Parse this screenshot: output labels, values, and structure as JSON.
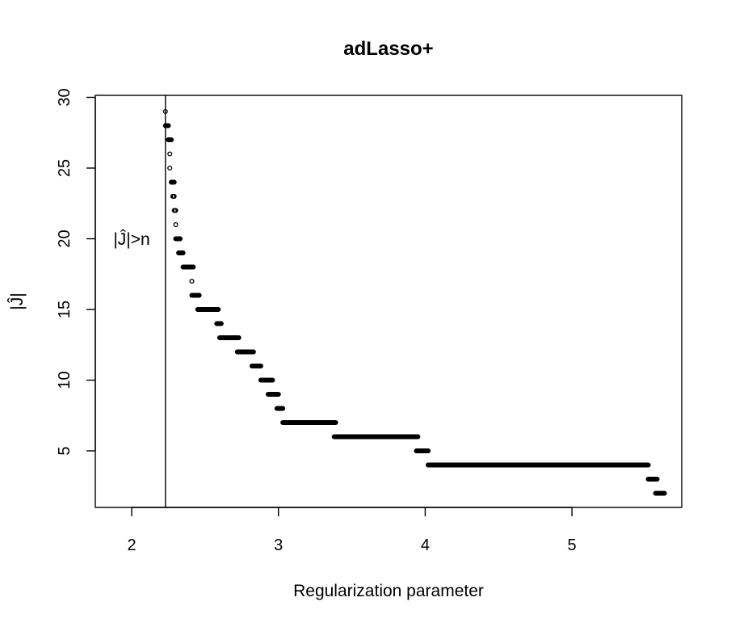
{
  "chart_data": {
    "type": "scatter",
    "title": "adLasso+",
    "xlabel": "Regularization parameter",
    "ylabel": "|Ĵ|",
    "xlim": [
      1.75,
      5.75
    ],
    "ylim": [
      1,
      30
    ],
    "xticks": [
      "2",
      "3",
      "4",
      "5"
    ],
    "yticks": [
      "5",
      "10",
      "15",
      "20",
      "25",
      "30"
    ],
    "grid": false,
    "legend": "none",
    "marker": "open-circle",
    "color": "#000000",
    "vline": {
      "x": 2.23,
      "label": "|Ĵ|>n"
    },
    "segments": [
      {
        "y": 29,
        "x_start": 2.23,
        "x_end": 2.23
      },
      {
        "y": 28,
        "x_start": 2.23,
        "x_end": 2.25
      },
      {
        "y": 27,
        "x_start": 2.25,
        "x_end": 2.27
      },
      {
        "y": 26,
        "x_start": 2.26,
        "x_end": 2.26
      },
      {
        "y": 25,
        "x_start": 2.26,
        "x_end": 2.26
      },
      {
        "y": 24,
        "x_start": 2.27,
        "x_end": 2.29
      },
      {
        "y": 23,
        "x_start": 2.28,
        "x_end": 2.29
      },
      {
        "y": 22,
        "x_start": 2.29,
        "x_end": 2.3
      },
      {
        "y": 21,
        "x_start": 2.3,
        "x_end": 2.3
      },
      {
        "y": 20,
        "x_start": 2.3,
        "x_end": 2.33
      },
      {
        "y": 19,
        "x_start": 2.32,
        "x_end": 2.35
      },
      {
        "y": 18,
        "x_start": 2.35,
        "x_end": 2.42
      },
      {
        "y": 17,
        "x_start": 2.41,
        "x_end": 2.41
      },
      {
        "y": 16,
        "x_start": 2.41,
        "x_end": 2.46
      },
      {
        "y": 15,
        "x_start": 2.45,
        "x_end": 2.59
      },
      {
        "y": 14,
        "x_start": 2.58,
        "x_end": 2.61
      },
      {
        "y": 13,
        "x_start": 2.6,
        "x_end": 2.73
      },
      {
        "y": 12,
        "x_start": 2.72,
        "x_end": 2.83
      },
      {
        "y": 11,
        "x_start": 2.82,
        "x_end": 2.88
      },
      {
        "y": 10,
        "x_start": 2.88,
        "x_end": 2.96
      },
      {
        "y": 9,
        "x_start": 2.93,
        "x_end": 3.0
      },
      {
        "y": 8,
        "x_start": 2.99,
        "x_end": 3.03
      },
      {
        "y": 7,
        "x_start": 3.03,
        "x_end": 3.39
      },
      {
        "y": 6,
        "x_start": 3.38,
        "x_end": 3.95
      },
      {
        "y": 5,
        "x_start": 3.94,
        "x_end": 4.02
      },
      {
        "y": 4,
        "x_start": 4.02,
        "x_end": 5.52
      },
      {
        "y": 3,
        "x_start": 5.52,
        "x_end": 5.58
      },
      {
        "y": 2,
        "x_start": 5.57,
        "x_end": 5.63
      }
    ]
  }
}
